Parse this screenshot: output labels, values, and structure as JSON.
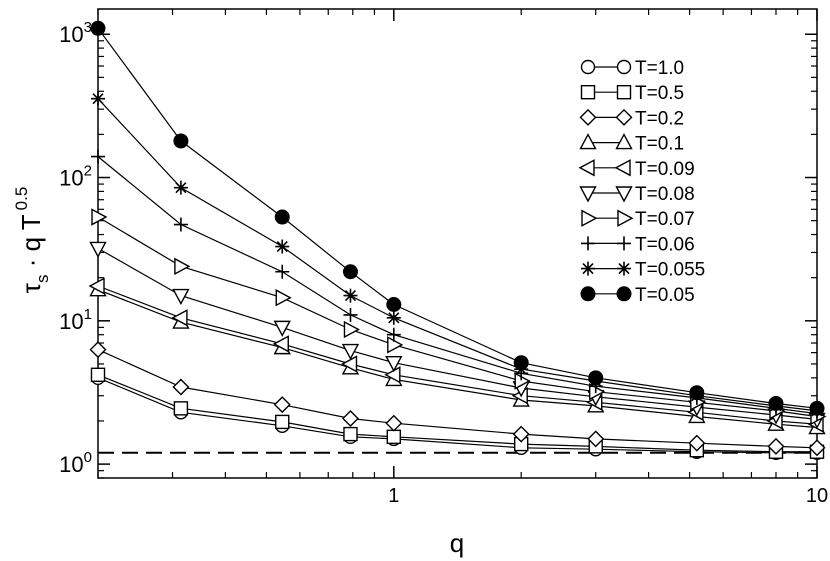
{
  "chart_data": {
    "type": "line",
    "xlabel": "q",
    "ylabel": {
      "base": "τ",
      "sub": "s",
      "rest": " · q T",
      "sup": "0.5"
    },
    "x_scale": "log",
    "y_scale": "log",
    "xlim": [
      0.2,
      10
    ],
    "ylim": [
      0.8,
      1500
    ],
    "x_ticks": [
      {
        "value": 1,
        "label": "1"
      },
      {
        "value": 10,
        "label": "10"
      }
    ],
    "y_ticks": [
      {
        "value": 1,
        "base": "10",
        "exp": "0"
      },
      {
        "value": 10,
        "base": "10",
        "exp": "1"
      },
      {
        "value": 100,
        "base": "10",
        "exp": "2"
      },
      {
        "value": 1000,
        "base": "10",
        "exp": "3"
      }
    ],
    "x": [
      0.2,
      0.314,
      0.545,
      0.79,
      1.0,
      2.0,
      3.0,
      5.2,
      8.0,
      10.0
    ],
    "reference_line": {
      "y": 1.2,
      "style": "dashed"
    },
    "legend_position": "top-right",
    "series": [
      {
        "name": "T=1.0",
        "marker": "circle",
        "values": [
          4.0,
          2.3,
          1.85,
          1.55,
          1.5,
          1.3,
          1.27,
          1.22,
          1.2,
          1.2
        ]
      },
      {
        "name": "T=0.5",
        "marker": "square",
        "values": [
          4.2,
          2.45,
          1.97,
          1.62,
          1.55,
          1.38,
          1.33,
          1.25,
          1.22,
          1.22
        ]
      },
      {
        "name": "T=0.2",
        "marker": "diamond",
        "values": [
          6.3,
          3.45,
          2.6,
          2.08,
          1.93,
          1.62,
          1.5,
          1.4,
          1.33,
          1.3
        ]
      },
      {
        "name": "T=0.1",
        "marker": "triangle-up",
        "values": [
          16.5,
          9.8,
          6.5,
          4.7,
          3.9,
          2.8,
          2.55,
          2.15,
          1.9,
          1.8
        ]
      },
      {
        "name": "T=0.09",
        "marker": "triangle-left",
        "values": [
          17.5,
          10.5,
          6.9,
          5.0,
          4.2,
          3.0,
          2.7,
          2.3,
          2.0,
          1.9
        ]
      },
      {
        "name": "T=0.08",
        "marker": "triangle-down",
        "values": [
          32,
          15,
          9.0,
          6.2,
          5.1,
          3.4,
          2.95,
          2.5,
          2.2,
          2.05
        ]
      },
      {
        "name": "T=0.07",
        "marker": "triangle-right",
        "values": [
          53,
          24,
          14.5,
          8.7,
          6.8,
          3.8,
          3.2,
          2.7,
          2.35,
          2.15
        ]
      },
      {
        "name": "T=0.06",
        "marker": "plus",
        "values": [
          140,
          47,
          22,
          11,
          8.0,
          4.3,
          3.5,
          2.9,
          2.45,
          2.25
        ]
      },
      {
        "name": "T=0.055",
        "marker": "star",
        "values": [
          355,
          85,
          33,
          15,
          10.5,
          4.6,
          3.8,
          3.0,
          2.55,
          2.35
        ]
      },
      {
        "name": "T=0.05",
        "marker": "filled-circle",
        "values": [
          1100,
          180,
          53,
          22,
          13,
          5.1,
          4.0,
          3.15,
          2.65,
          2.45
        ]
      }
    ]
  }
}
